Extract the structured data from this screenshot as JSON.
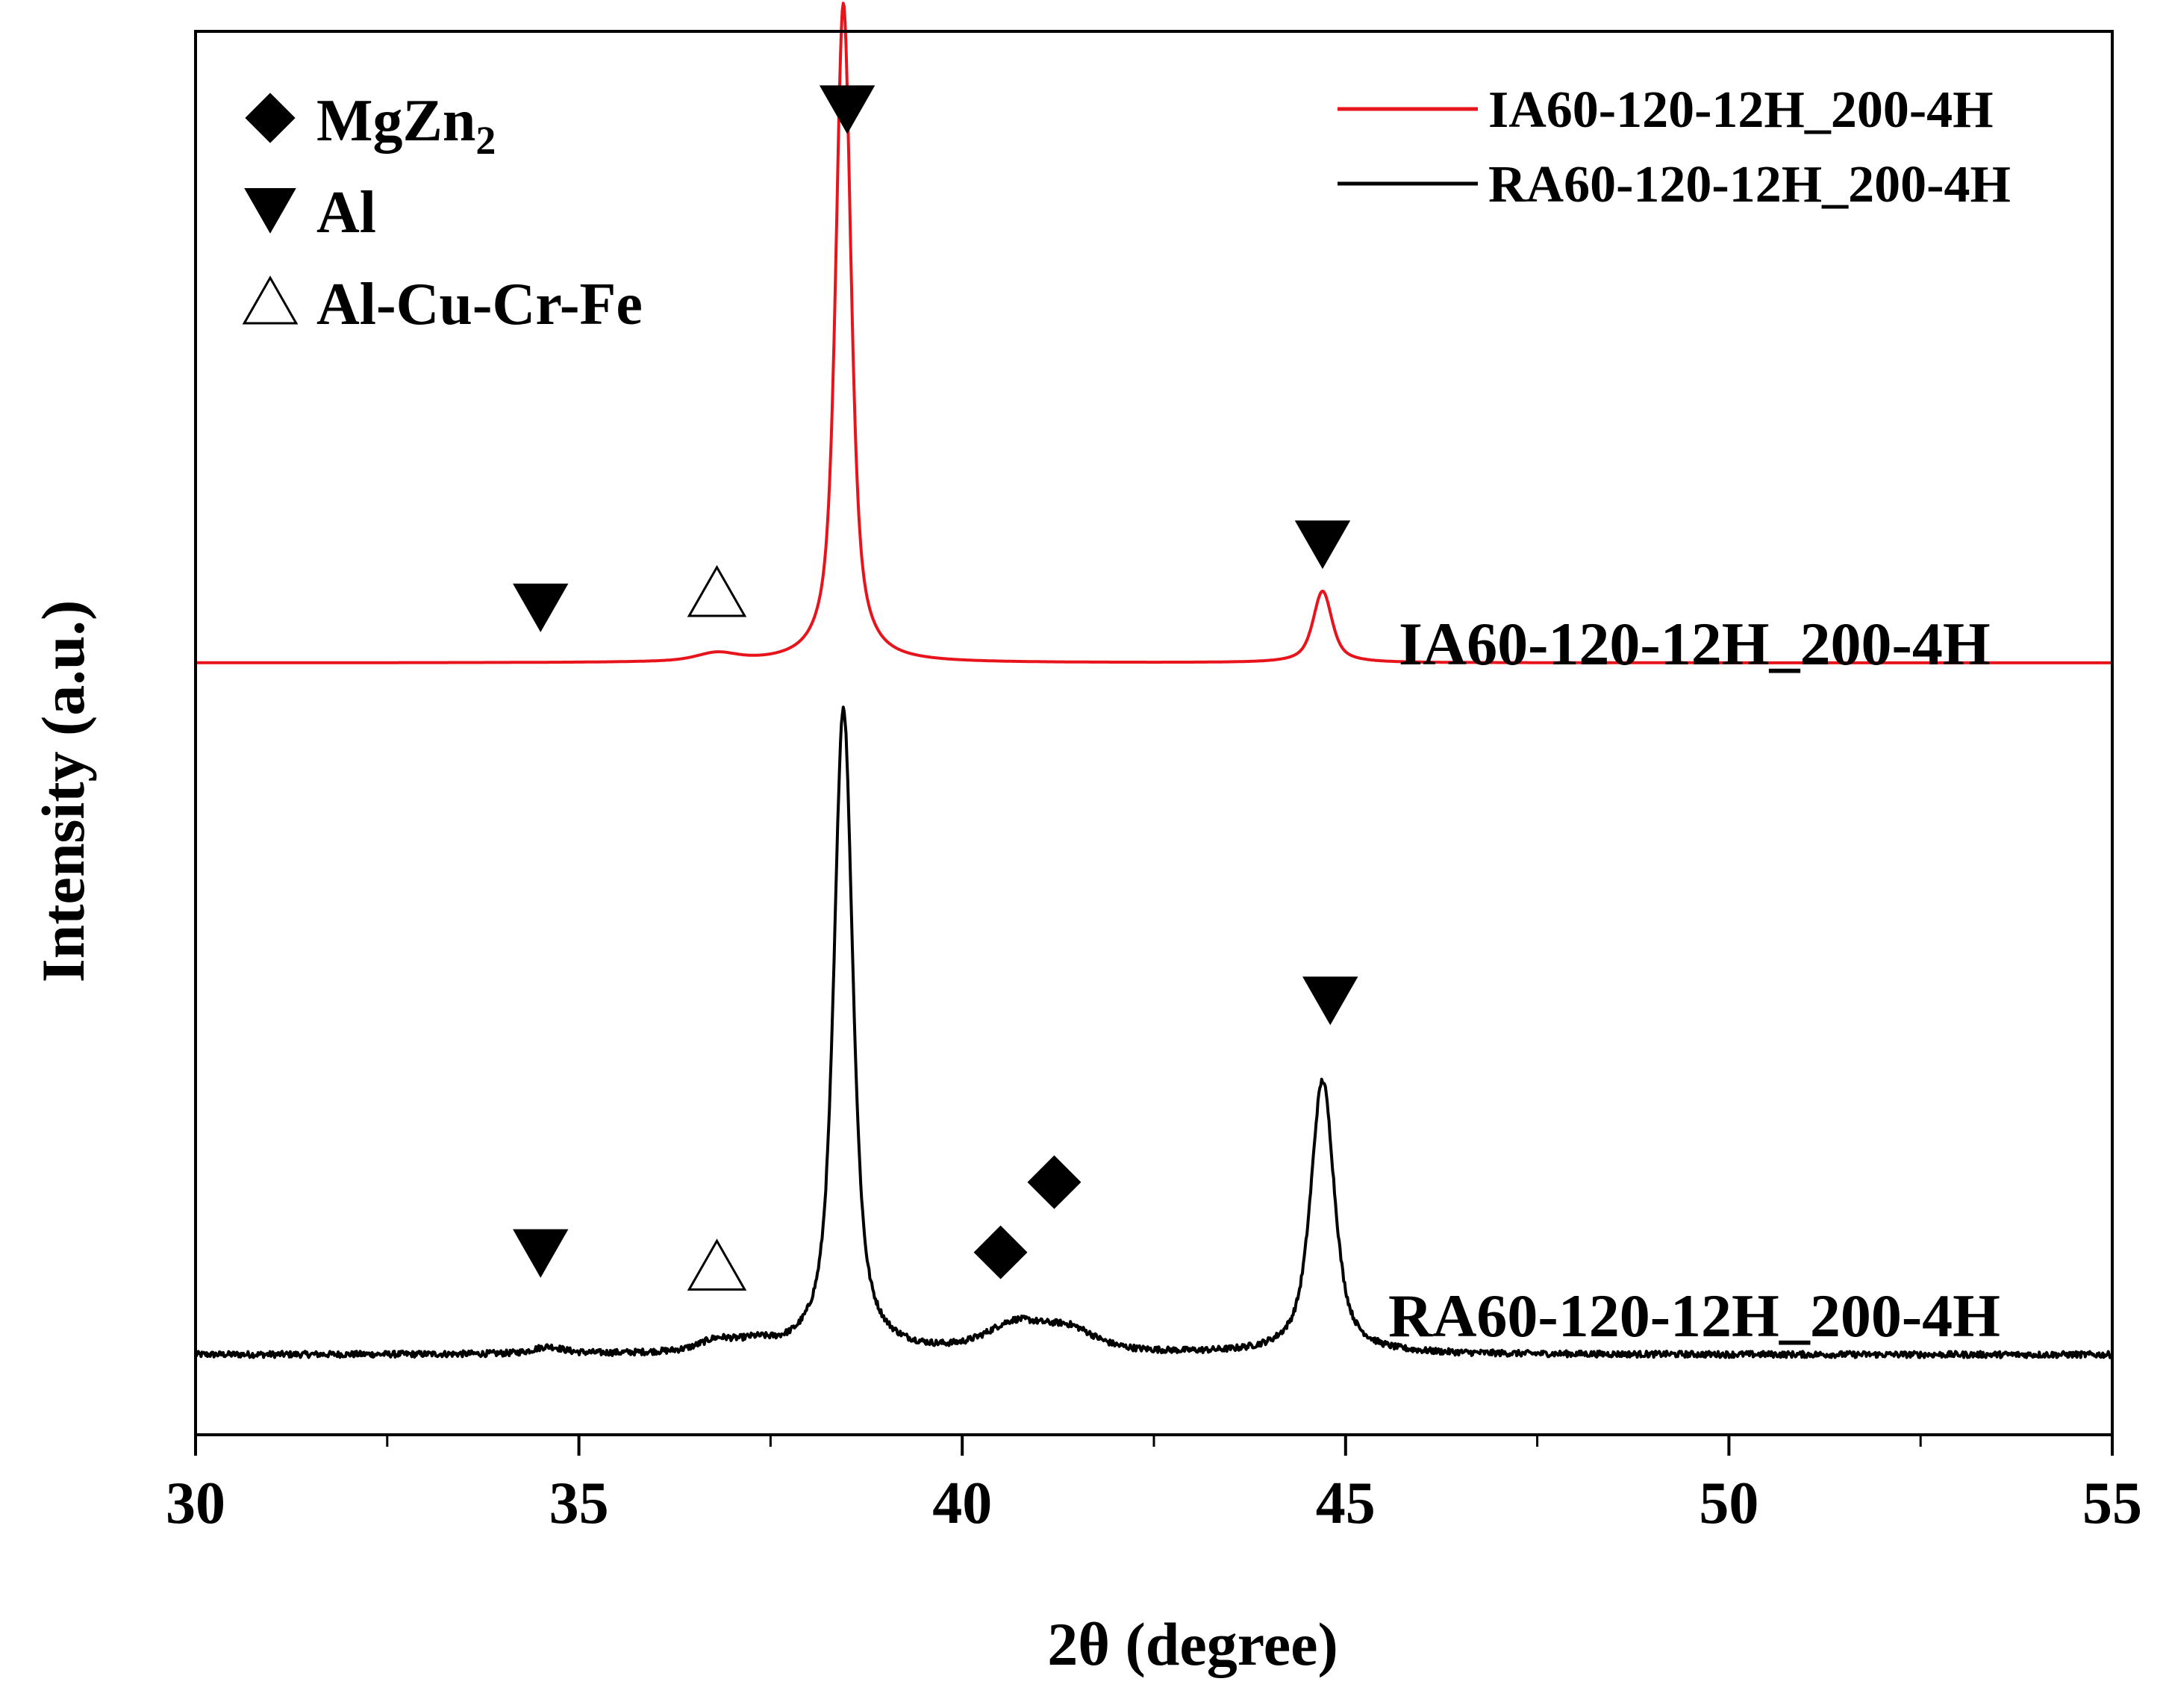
{
  "chart_data": {
    "type": "line",
    "title": "",
    "xlabel": "2θ (degree)",
    "ylabel": "Intensity (a.u.)",
    "xlim": [
      30,
      55
    ],
    "xticks": [
      "30",
      "35",
      "40",
      "45",
      "50",
      "55"
    ],
    "x_minor_step": 2.5,
    "y_ticks_shown": false,
    "series": [
      {
        "name": "IA60-120-12H_200-4H",
        "color": "#e8141c",
        "baseline": 0.55,
        "noise": 0.0,
        "label": "IA60-120-12H_200-4H",
        "peaks": [
          {
            "center": 36.8,
            "height": 0.006,
            "width": 0.35
          },
          {
            "center": 38.45,
            "height": 0.47,
            "width": 0.13
          },
          {
            "center": 44.7,
            "height": 0.051,
            "width": 0.16
          }
        ]
      },
      {
        "name": "RA60-120-12H_200-4H",
        "color": "#000000",
        "baseline": 0.057,
        "noise": 0.0022,
        "label": "RA60-120-12H_200-4H",
        "peaks": [
          {
            "center": 34.6,
            "height": 0.005,
            "width": 0.25
          },
          {
            "center": 36.8,
            "height": 0.008,
            "width": 0.3
          },
          {
            "center": 37.3,
            "height": 0.006,
            "width": 0.3
          },
          {
            "center": 38.45,
            "height": 0.46,
            "width": 0.16
          },
          {
            "center": 40.7,
            "height": 0.02,
            "width": 0.5
          },
          {
            "center": 41.4,
            "height": 0.015,
            "width": 0.45
          },
          {
            "center": 44.7,
            "height": 0.195,
            "width": 0.2
          }
        ]
      }
    ],
    "phase_legend": [
      {
        "marker": "diamond",
        "label_main": "MgZn",
        "label_sub": "2"
      },
      {
        "marker": "triangle-down",
        "label_main": "Al",
        "label_sub": ""
      },
      {
        "marker": "triangle-open",
        "label_main": "Al-Cu-Cr-Fe",
        "label_sub": ""
      }
    ],
    "peak_markers": [
      {
        "series": 0,
        "x": 38.5,
        "y": 0.945,
        "marker": "triangle-down",
        "phase": "Al"
      },
      {
        "series": 0,
        "x": 34.5,
        "y": 0.59,
        "marker": "triangle-down",
        "phase": "Al"
      },
      {
        "series": 0,
        "x": 36.8,
        "y": 0.6,
        "marker": "triangle-open",
        "phase": "Al-Cu-Cr-Fe"
      },
      {
        "series": 0,
        "x": 44.7,
        "y": 0.635,
        "marker": "triangle-down",
        "phase": "Al"
      },
      {
        "series": 1,
        "x": 34.5,
        "y": 0.13,
        "marker": "triangle-down",
        "phase": "Al"
      },
      {
        "series": 1,
        "x": 36.8,
        "y": 0.12,
        "marker": "triangle-open",
        "phase": "Al-Cu-Cr-Fe"
      },
      {
        "series": 1,
        "x": 40.5,
        "y": 0.13,
        "marker": "diamond",
        "phase": "MgZn2"
      },
      {
        "series": 1,
        "x": 41.2,
        "y": 0.18,
        "marker": "diamond",
        "phase": "MgZn2"
      },
      {
        "series": 1,
        "x": 44.8,
        "y": 0.31,
        "marker": "triangle-down",
        "phase": "Al"
      }
    ],
    "line_legend_position": "top-right",
    "phase_legend_position": "top-left"
  }
}
